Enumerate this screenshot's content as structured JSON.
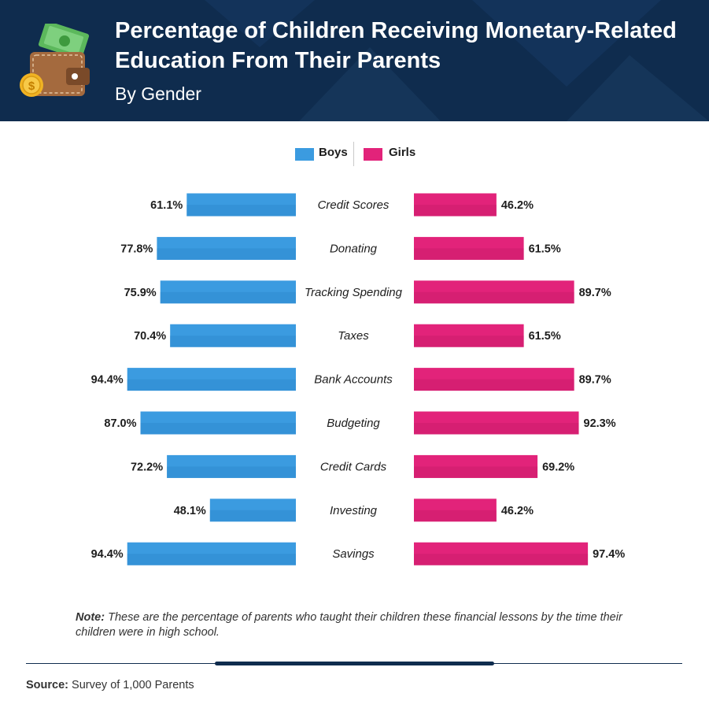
{
  "header": {
    "title": "Percentage of Children Receiving Monetary-Related Education From Their Parents",
    "subtitle": "By Gender"
  },
  "colors": {
    "header_bg": "#0f2c4e",
    "boys": "#3b9be0",
    "girls": "#e2237a",
    "text": "#1d1d1d"
  },
  "icons": [
    "wallet-icon",
    "cash-icon",
    "dollar-coin-icon"
  ],
  "legend": {
    "boys_label": "Boys",
    "girls_label": "Girls"
  },
  "chart_data": {
    "type": "bar",
    "orientation": "horizontal-butterfly",
    "categories": [
      "Credit Scores",
      "Donating",
      "Tracking Spending",
      "Taxes",
      "Bank Accounts",
      "Budgeting",
      "Credit Cards",
      "Investing",
      "Savings"
    ],
    "series": [
      {
        "name": "Boys",
        "values": [
          61.1,
          77.8,
          75.9,
          70.4,
          94.4,
          87.0,
          72.2,
          48.1,
          94.4
        ],
        "labels": [
          "61.1%",
          "77.8%",
          "75.9%",
          "70.4%",
          "94.4%",
          "87.0%",
          "72.2%",
          "48.1%",
          "94.4%"
        ]
      },
      {
        "name": "Girls",
        "values": [
          46.2,
          61.5,
          89.7,
          61.5,
          89.7,
          92.3,
          69.2,
          46.2,
          97.4
        ],
        "labels": [
          "46.2%",
          "61.5%",
          "89.7%",
          "61.5%",
          "89.7%",
          "92.3%",
          "69.2%",
          "46.2%",
          "97.4%"
        ]
      }
    ],
    "unit": "%",
    "xlim": [
      0,
      100
    ],
    "legend_position": "top-center",
    "grid": false
  },
  "note": {
    "prefix": "Note:",
    "text": "These are the percentage of parents who taught their children these financial lessons by the time their children were in high school."
  },
  "source": {
    "prefix": "Source:",
    "text": "Survey of 1,000 Parents"
  }
}
